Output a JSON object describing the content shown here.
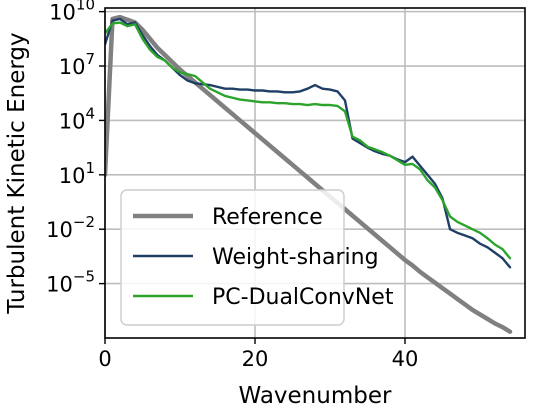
{
  "chart_data": {
    "type": "line",
    "xlabel": "Wavenumber",
    "ylabel": "Turbulent Kinetic Energy",
    "xlim": [
      0,
      56
    ],
    "ylim_log10": [
      -8,
      10.2
    ],
    "yscale": "log",
    "grid": true,
    "legend_placement": "lower-left",
    "x_ticks": [
      {
        "value": 0,
        "label": "0"
      },
      {
        "value": 20,
        "label": "20"
      },
      {
        "value": 40,
        "label": "40"
      }
    ],
    "y_ticks": [
      {
        "exp": 10,
        "base": "10",
        "power": "10"
      },
      {
        "exp": 7,
        "base": "10",
        "power": "7"
      },
      {
        "exp": 4,
        "base": "10",
        "power": "4"
      },
      {
        "exp": 1,
        "base": "10",
        "power": "1"
      },
      {
        "exp": -2,
        "base": "10",
        "power": "−2"
      },
      {
        "exp": -5,
        "base": "10",
        "power": "−5"
      }
    ],
    "series": [
      {
        "name": "Reference",
        "color": "#808080",
        "width": 4.5,
        "log10_values": [
          [
            0,
            1.0
          ],
          [
            1,
            9.6
          ],
          [
            2,
            9.7
          ],
          [
            3,
            9.55
          ],
          [
            4,
            9.4
          ],
          [
            5,
            9.0
          ],
          [
            6,
            8.5
          ],
          [
            7,
            8.0
          ],
          [
            8,
            7.6
          ],
          [
            9,
            7.2
          ],
          [
            10,
            6.8
          ],
          [
            11,
            6.45
          ],
          [
            12,
            6.1
          ],
          [
            13,
            5.75
          ],
          [
            14,
            5.4
          ],
          [
            15,
            5.05
          ],
          [
            16,
            4.7
          ],
          [
            17,
            4.35
          ],
          [
            18,
            4.0
          ],
          [
            19,
            3.65
          ],
          [
            20,
            3.3
          ],
          [
            21,
            2.95
          ],
          [
            22,
            2.6
          ],
          [
            23,
            2.25
          ],
          [
            24,
            1.9
          ],
          [
            25,
            1.55
          ],
          [
            26,
            1.2
          ],
          [
            27,
            0.85
          ],
          [
            28,
            0.5
          ],
          [
            29,
            0.15
          ],
          [
            30,
            -0.2
          ],
          [
            31,
            -0.55
          ],
          [
            32,
            -0.9
          ],
          [
            33,
            -1.25
          ],
          [
            34,
            -1.6
          ],
          [
            35,
            -1.95
          ],
          [
            36,
            -2.3
          ],
          [
            37,
            -2.65
          ],
          [
            38,
            -3.0
          ],
          [
            39,
            -3.35
          ],
          [
            40,
            -3.7
          ],
          [
            41,
            -4.0
          ],
          [
            42,
            -4.35
          ],
          [
            43,
            -4.65
          ],
          [
            44,
            -4.95
          ],
          [
            45,
            -5.25
          ],
          [
            46,
            -5.55
          ],
          [
            47,
            -5.85
          ],
          [
            48,
            -6.15
          ],
          [
            49,
            -6.45
          ],
          [
            50,
            -6.7
          ],
          [
            51,
            -6.95
          ],
          [
            52,
            -7.2
          ],
          [
            53,
            -7.4
          ],
          [
            54,
            -7.65
          ]
        ]
      },
      {
        "name": "Weight-sharing",
        "color": "#1f3f66",
        "width": 2.4,
        "log10_values": [
          [
            0,
            8.2
          ],
          [
            1,
            9.5
          ],
          [
            2,
            9.6
          ],
          [
            3,
            9.3
          ],
          [
            4,
            9.4
          ],
          [
            5,
            8.7
          ],
          [
            6,
            8.1
          ],
          [
            7,
            7.6
          ],
          [
            8,
            7.3
          ],
          [
            9,
            6.9
          ],
          [
            10,
            6.5
          ],
          [
            11,
            6.2
          ],
          [
            12,
            6.05
          ],
          [
            13,
            6.0
          ],
          [
            14,
            5.95
          ],
          [
            15,
            5.85
          ],
          [
            16,
            5.75
          ],
          [
            17,
            5.75
          ],
          [
            18,
            5.7
          ],
          [
            19,
            5.7
          ],
          [
            20,
            5.65
          ],
          [
            21,
            5.65
          ],
          [
            22,
            5.6
          ],
          [
            23,
            5.6
          ],
          [
            24,
            5.55
          ],
          [
            25,
            5.55
          ],
          [
            26,
            5.6
          ],
          [
            27,
            5.75
          ],
          [
            28,
            5.95
          ],
          [
            29,
            5.75
          ],
          [
            30,
            5.7
          ],
          [
            31,
            5.6
          ],
          [
            32,
            5.1
          ],
          [
            33,
            3.0
          ],
          [
            34,
            2.75
          ],
          [
            35,
            2.5
          ],
          [
            36,
            2.3
          ],
          [
            37,
            2.15
          ],
          [
            38,
            2.05
          ],
          [
            39,
            1.85
          ],
          [
            40,
            1.7
          ],
          [
            41,
            2.0
          ],
          [
            42,
            1.5
          ],
          [
            43,
            1.0
          ],
          [
            44,
            0.5
          ],
          [
            45,
            -0.3
          ],
          [
            46,
            -2.0
          ],
          [
            47,
            -2.2
          ],
          [
            48,
            -2.35
          ],
          [
            49,
            -2.5
          ],
          [
            50,
            -2.8
          ],
          [
            51,
            -3.0
          ],
          [
            52,
            -3.3
          ],
          [
            53,
            -3.6
          ],
          [
            54,
            -4.1
          ]
        ]
      },
      {
        "name": "PC-DualConvNet",
        "color": "#2ca42c",
        "width": 2.4,
        "log10_values": [
          [
            0,
            8.8
          ],
          [
            1,
            9.35
          ],
          [
            2,
            9.4
          ],
          [
            3,
            9.2
          ],
          [
            4,
            9.3
          ],
          [
            5,
            8.5
          ],
          [
            6,
            7.9
          ],
          [
            7,
            7.5
          ],
          [
            8,
            7.3
          ],
          [
            9,
            6.9
          ],
          [
            10,
            6.65
          ],
          [
            11,
            6.55
          ],
          [
            12,
            6.45
          ],
          [
            13,
            6.1
          ],
          [
            14,
            5.75
          ],
          [
            15,
            5.55
          ],
          [
            16,
            5.35
          ],
          [
            17,
            5.25
          ],
          [
            18,
            5.15
          ],
          [
            19,
            5.1
          ],
          [
            20,
            5.05
          ],
          [
            21,
            5.0
          ],
          [
            22,
            5.0
          ],
          [
            23,
            4.95
          ],
          [
            24,
            4.95
          ],
          [
            25,
            4.9
          ],
          [
            26,
            4.9
          ],
          [
            27,
            4.85
          ],
          [
            28,
            4.9
          ],
          [
            29,
            4.85
          ],
          [
            30,
            4.85
          ],
          [
            31,
            4.8
          ],
          [
            32,
            4.5
          ],
          [
            33,
            3.1
          ],
          [
            34,
            2.9
          ],
          [
            35,
            2.55
          ],
          [
            36,
            2.4
          ],
          [
            37,
            2.25
          ],
          [
            38,
            2.05
          ],
          [
            39,
            1.8
          ],
          [
            40,
            1.55
          ],
          [
            41,
            1.6
          ],
          [
            42,
            1.3
          ],
          [
            43,
            0.7
          ],
          [
            44,
            0.3
          ],
          [
            45,
            -0.4
          ],
          [
            46,
            -1.3
          ],
          [
            47,
            -1.6
          ],
          [
            48,
            -1.8
          ],
          [
            49,
            -2.0
          ],
          [
            50,
            -2.2
          ],
          [
            51,
            -2.5
          ],
          [
            52,
            -2.85
          ],
          [
            53,
            -3.1
          ],
          [
            54,
            -3.6
          ]
        ]
      }
    ]
  }
}
